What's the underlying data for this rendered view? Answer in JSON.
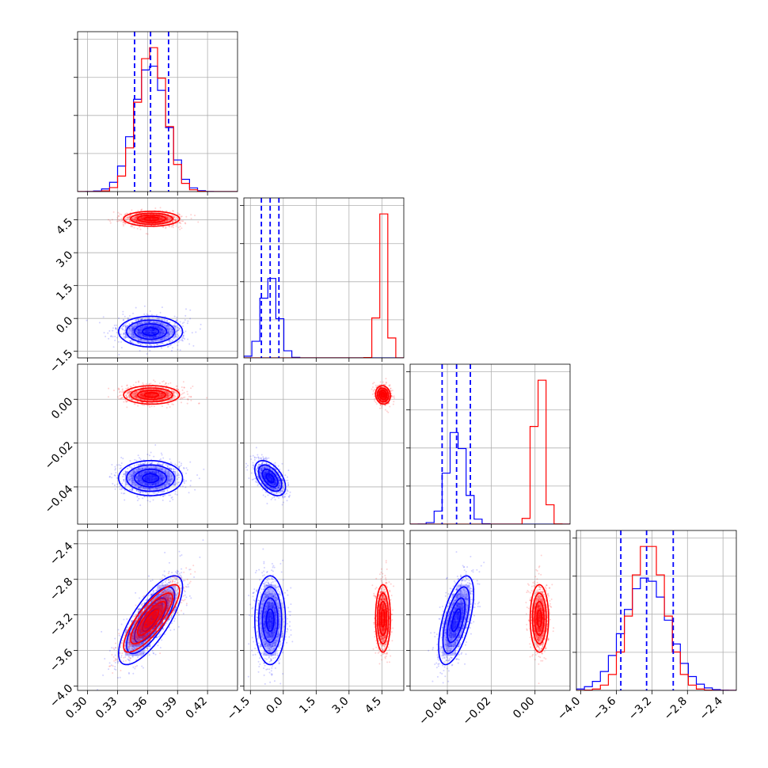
{
  "chart_data": {
    "type": "corner",
    "parameters": [
      {
        "index": 0,
        "range": [
          0.29,
          0.45
        ],
        "ticks": [
          0.3,
          0.33,
          0.36,
          0.39,
          0.42
        ],
        "tick_labels": [
          "0.30",
          "0.33",
          "0.36",
          "0.39",
          "0.42"
        ]
      },
      {
        "index": 1,
        "range": [
          -1.8,
          5.5
        ],
        "ticks": [
          -1.5,
          0.0,
          1.5,
          3.0,
          4.5
        ],
        "tick_labels": [
          "−1.5",
          "0.0",
          "1.5",
          "3.0",
          "4.5"
        ]
      },
      {
        "index": 2,
        "range": [
          -0.057,
          0.016
        ],
        "ticks": [
          -0.04,
          -0.02,
          0.0
        ],
        "tick_labels": [
          "−0.04",
          "−0.02",
          "0.00"
        ]
      },
      {
        "index": 3,
        "range": [
          -4.05,
          -2.25
        ],
        "ticks": [
          -4.0,
          -3.6,
          -3.2,
          -2.8,
          -2.4
        ],
        "tick_labels": [
          "−4.0",
          "−3.6",
          "−3.2",
          "−2.8",
          "−2.4"
        ]
      }
    ],
    "grid": true,
    "series": [
      {
        "color": "#0000ff",
        "means": [
          0.363,
          -0.6,
          -0.036,
          -3.26
        ],
        "sds": [
          0.016,
          0.35,
          0.004,
          0.25
        ],
        "quantiles": [
          [
            0.347,
            0.363,
            0.381
          ],
          [
            -1.0,
            -0.6,
            -0.2
          ],
          [
            -0.0424,
            -0.0358,
            -0.0295
          ],
          [
            -3.55,
            -3.26,
            -2.96
          ]
        ],
        "corr": {
          "0-3": 0.75,
          "1-2": -0.5,
          "2-3": 0.6
        }
      },
      {
        "color": "#ff0000",
        "means": [
          0.364,
          4.55,
          0.002,
          -3.24
        ],
        "sds": [
          0.014,
          0.17,
          0.0021,
          0.19
        ],
        "corr": {
          "0-3": 0.82,
          "1-2": -0.1,
          "2-3": 0.0
        }
      }
    ],
    "colors": {
      "blue": "#0000ff",
      "red": "#ff0000",
      "grid": "#b0b0b0"
    }
  }
}
